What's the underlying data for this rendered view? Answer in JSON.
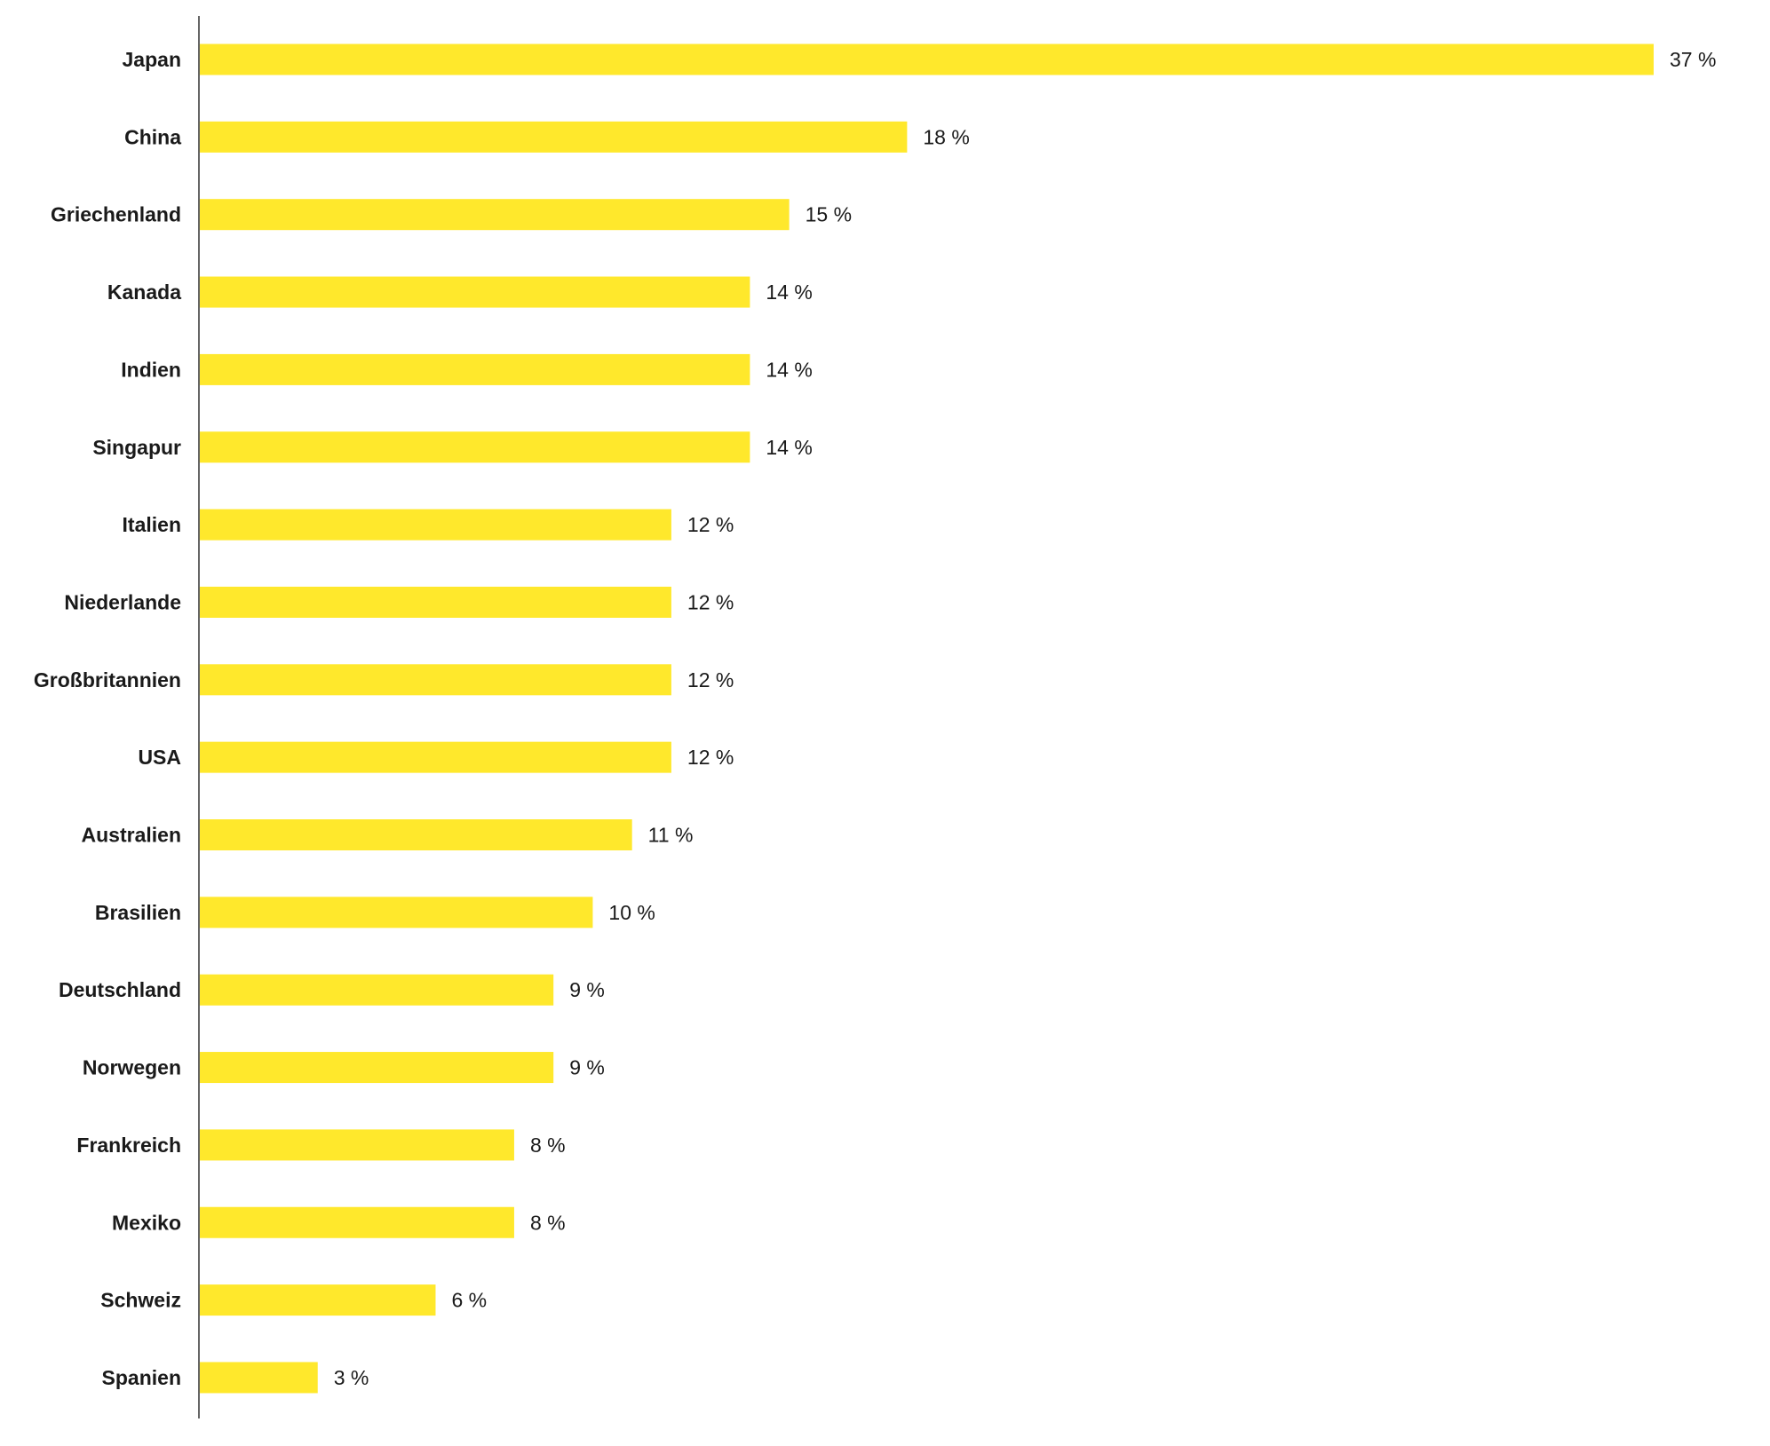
{
  "chart_data": {
    "type": "bar",
    "orientation": "horizontal",
    "categories": [
      "Japan",
      "China",
      "Griechenland",
      "Kanada",
      "Indien",
      "Singapur",
      "Italien",
      "Niederlande",
      "Großbritannien",
      "USA",
      "Australien",
      "Brasilien",
      "Deutschland",
      "Norwegen",
      "Frankreich",
      "Mexiko",
      "Schweiz",
      "Spanien"
    ],
    "values": [
      37,
      18,
      15,
      14,
      14,
      14,
      12,
      12,
      12,
      12,
      11,
      10,
      9,
      9,
      8,
      8,
      6,
      3
    ],
    "value_labels": [
      "37 %",
      "18 %",
      "15 %",
      "14 %",
      "14 %",
      "14 %",
      "12 %",
      "12 %",
      "12 %",
      "12 %",
      "11 %",
      "10 %",
      "9 %",
      "9 %",
      "8 %",
      "8 %",
      "6 %",
      "3 %"
    ],
    "xlim": [
      0,
      37
    ],
    "grid": false,
    "legend": "none",
    "bar_color": "#ffe82c",
    "axis_color": "#333333",
    "text_color": "#1a1a1a"
  }
}
